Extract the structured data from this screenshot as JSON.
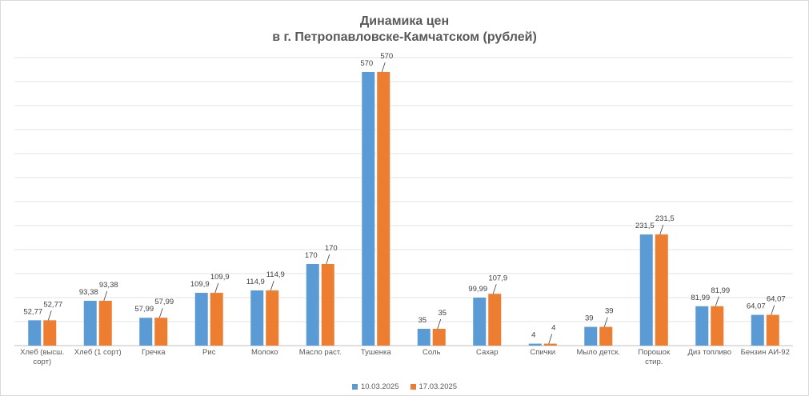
{
  "chart_data": {
    "type": "bar",
    "title": "Динамика цен",
    "subtitle": "в г. Петропавловске-Камчатском (рублей)",
    "categories": [
      [
        "Хлеб (высш.",
        "сорт)"
      ],
      [
        "Хлеб (1 сорт)"
      ],
      [
        "Гречка"
      ],
      [
        "Рис"
      ],
      [
        "Молоко"
      ],
      [
        "Масло раст."
      ],
      [
        "Тушенка"
      ],
      [
        "Соль"
      ],
      [
        "Сахар"
      ],
      [
        "Спички"
      ],
      [
        "Мыло детск."
      ],
      [
        "Порошок",
        "стир."
      ],
      [
        "Диз топливо"
      ],
      [
        "Бензин АИ-92"
      ]
    ],
    "series": [
      {
        "name": "10.03.2025",
        "color": "#5b9bd5",
        "values": [
          52.77,
          93.38,
          57.99,
          109.9,
          114.9,
          170,
          570,
          35,
          99.99,
          4,
          39,
          231.5,
          81.99,
          64.07
        ],
        "labels": [
          "52,77",
          "93,38",
          "57,99",
          "109,9",
          "114,9",
          "170",
          "570",
          "35",
          "99,99",
          "4",
          "39",
          "231,5",
          "81,99",
          "64,07"
        ]
      },
      {
        "name": "17.03.2025",
        "color": "#ed7d31",
        "values": [
          52.77,
          93.38,
          57.99,
          109.9,
          114.9,
          170,
          570,
          35,
          107.9,
          4,
          39,
          231.5,
          81.99,
          64.07
        ],
        "labels": [
          "52,77",
          "93,38",
          "57,99",
          "109,9",
          "114,9",
          "170",
          "570",
          "35",
          "107,9",
          "4",
          "39",
          "231,5",
          "81,99",
          "64,07"
        ]
      }
    ],
    "ylim": [
      0,
      600
    ],
    "y_gridline_step": 50,
    "grid": true,
    "y_tick_labels_shown": false,
    "legend_position": "bottom"
  }
}
